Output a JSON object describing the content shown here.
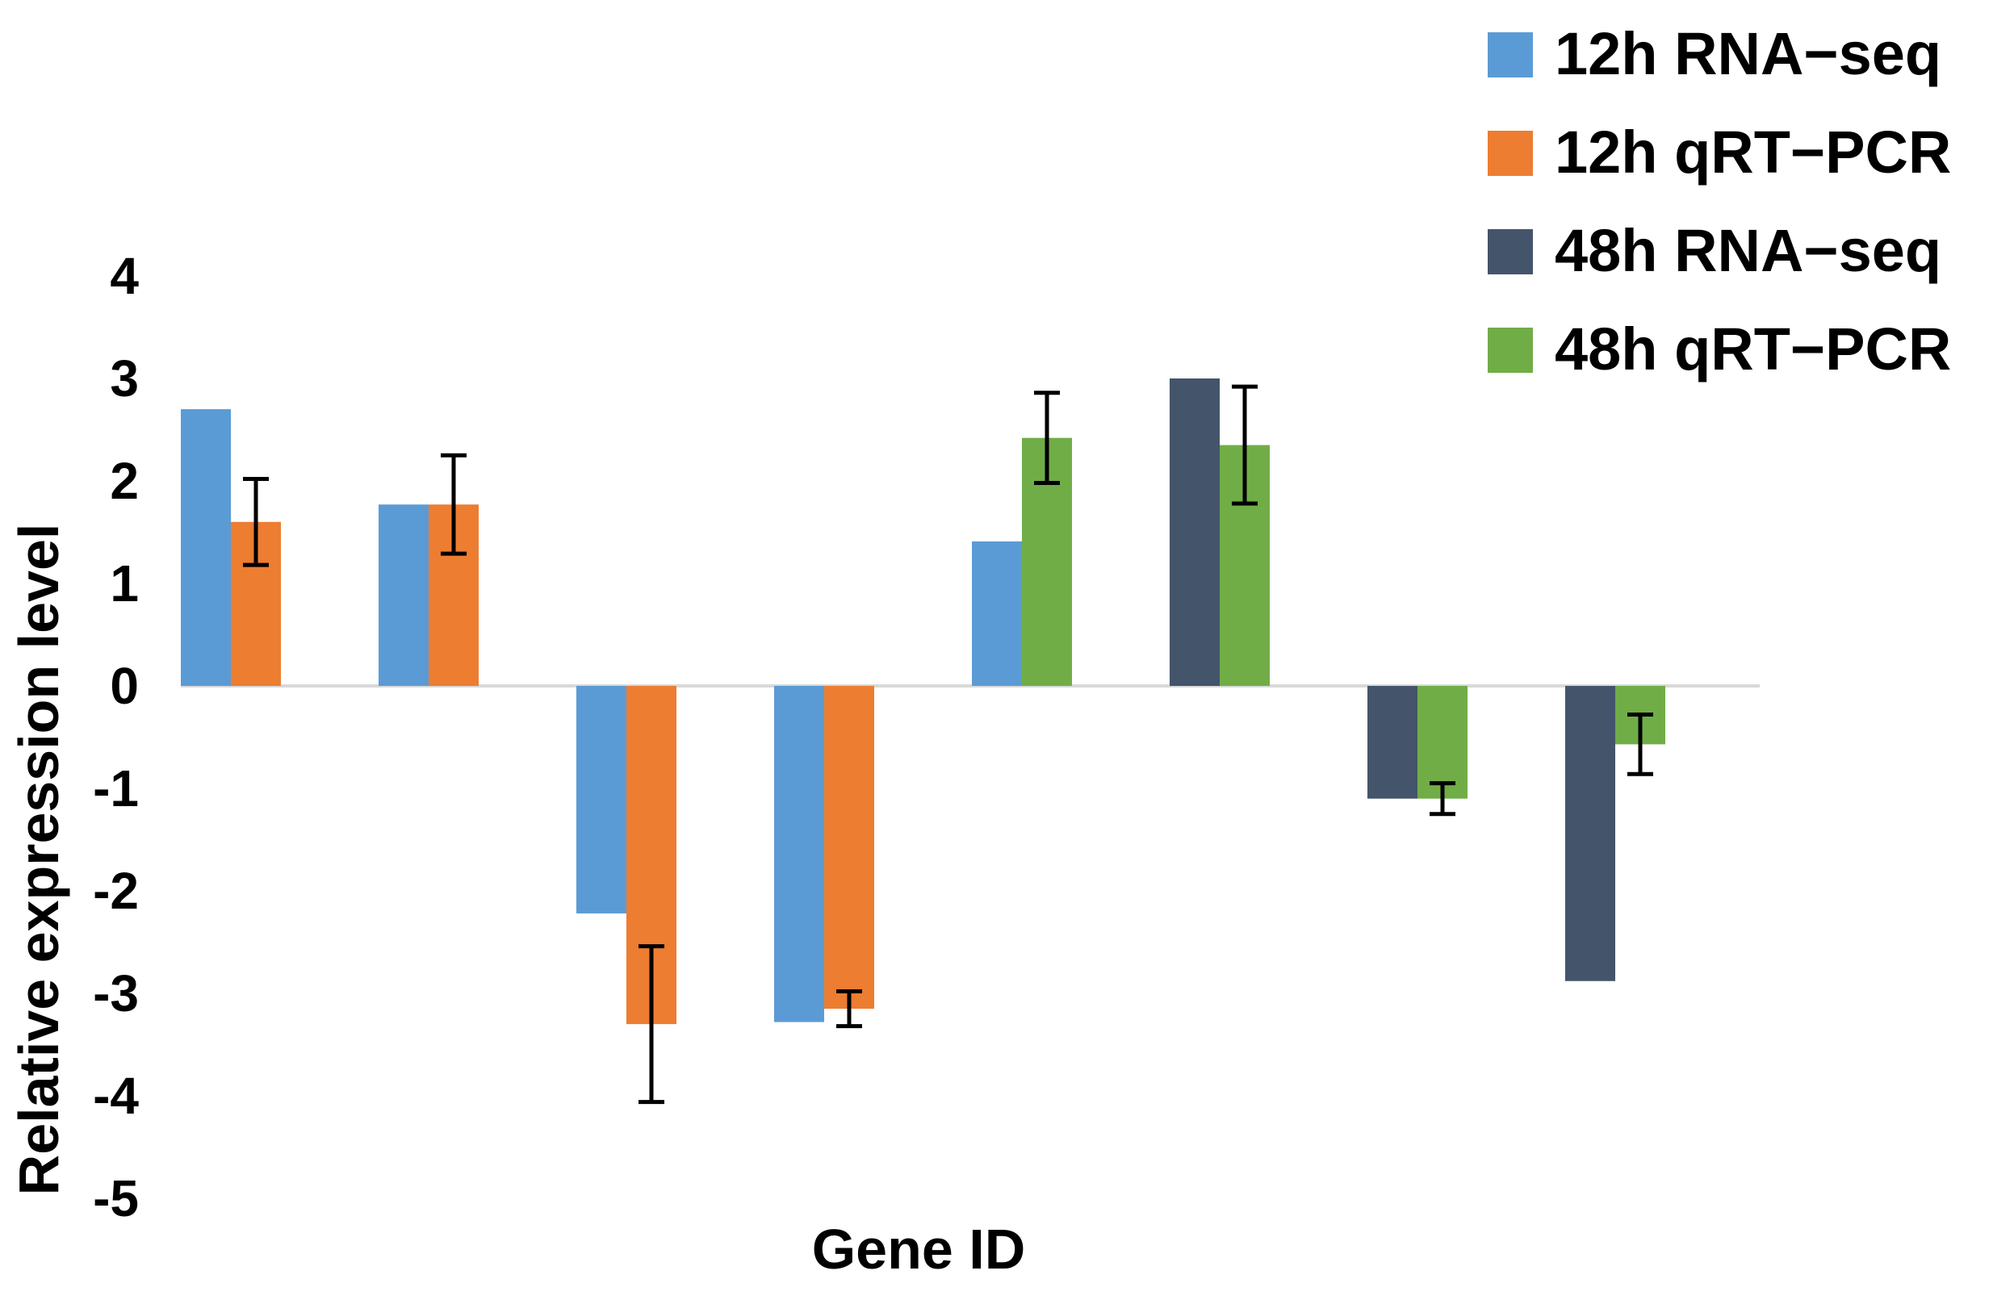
{
  "chart_data": {
    "type": "bar",
    "title": "",
    "xlabel": "Gene ID",
    "ylabel": "Relative expression level",
    "ylim": [
      -5,
      4
    ],
    "yticks": [
      "4",
      "3",
      "2",
      "1",
      "0",
      "-1",
      "-2",
      "-3",
      "-4",
      "-5"
    ],
    "legend_position": "top-right",
    "series": [
      {
        "name": "12h RNA−seq",
        "color": "#5b9bd5"
      },
      {
        "name": "12h qRT−PCR",
        "color": "#ed7d31"
      },
      {
        "name": "48h RNA−seq",
        "color": "#44546a"
      },
      {
        "name": "48h qRT−PCR",
        "color": "#70ad47"
      }
    ],
    "groups": [
      {
        "bars": [
          {
            "series": 0,
            "value": 2.7
          },
          {
            "series": 1,
            "value": 1.6,
            "error": 0.42
          }
        ]
      },
      {
        "bars": [
          {
            "series": 0,
            "value": 1.77
          },
          {
            "series": 1,
            "value": 1.77,
            "error": 0.48
          }
        ]
      },
      {
        "bars": [
          {
            "series": 0,
            "value": -2.22
          },
          {
            "series": 1,
            "value": -3.3,
            "error": 0.76
          }
        ]
      },
      {
        "bars": [
          {
            "series": 0,
            "value": -3.28
          },
          {
            "series": 1,
            "value": -3.15,
            "error": 0.17
          }
        ]
      },
      {
        "bars": [
          {
            "series": 0,
            "value": 1.41
          },
          {
            "series": 3,
            "value": 2.42,
            "error": 0.44
          }
        ]
      },
      {
        "bars": [
          {
            "series": 2,
            "value": 3.0
          },
          {
            "series": 3,
            "value": 2.35,
            "error": 0.57
          }
        ]
      },
      {
        "bars": [
          {
            "series": 2,
            "value": -1.1
          },
          {
            "series": 3,
            "value": -1.1,
            "error": 0.15
          }
        ]
      },
      {
        "bars": [
          {
            "series": 2,
            "value": -2.88
          },
          {
            "series": 3,
            "value": -0.57,
            "error": 0.29
          }
        ]
      }
    ]
  }
}
